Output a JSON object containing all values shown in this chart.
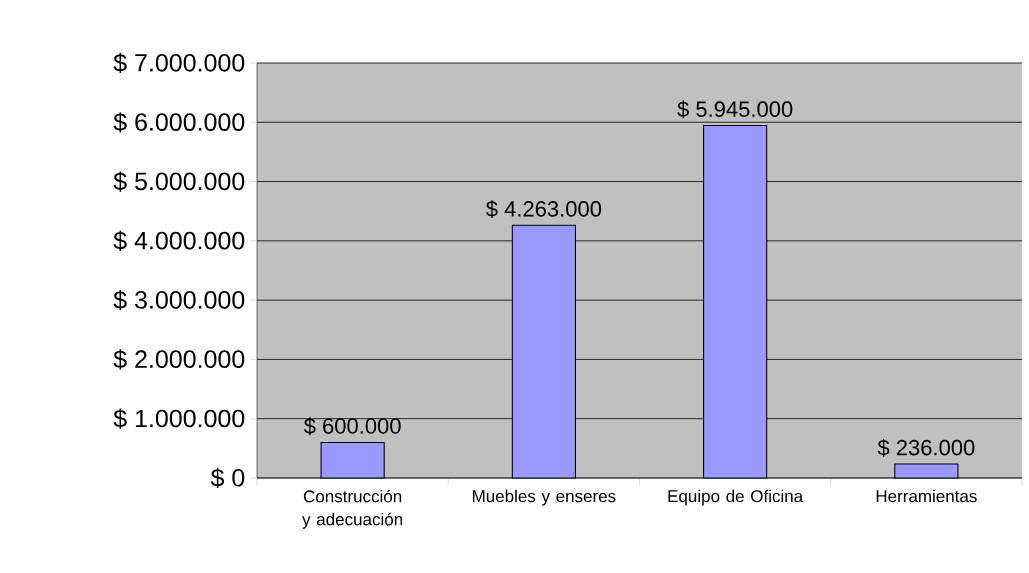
{
  "chart_data": {
    "type": "bar",
    "categories": [
      "Construcción y adecuación",
      "Muebles y enseres",
      "Equipo de Oficina",
      "Herramientas"
    ],
    "values": [
      600000,
      4263000,
      5945000,
      236000
    ],
    "value_labels": [
      "$ 600.000",
      "$ 4.263.000",
      "$ 5.945.000",
      "$ 236.000"
    ],
    "color": "#9999ff",
    "ylim": [
      0,
      7000000
    ],
    "yticks": [
      {
        "value": 0,
        "label": "$ 0"
      },
      {
        "value": 1000000,
        "label": "$ 1.000.000"
      },
      {
        "value": 2000000,
        "label": "$ 2.000.000"
      },
      {
        "value": 3000000,
        "label": "$ 3.000.000"
      },
      {
        "value": 4000000,
        "label": "$ 4.000.000"
      },
      {
        "value": 5000000,
        "label": "$ 5.000.000"
      },
      {
        "value": 6000000,
        "label": "$ 6.000.000"
      },
      {
        "value": 7000000,
        "label": "$ 7.000.000"
      }
    ],
    "grid": "y"
  }
}
